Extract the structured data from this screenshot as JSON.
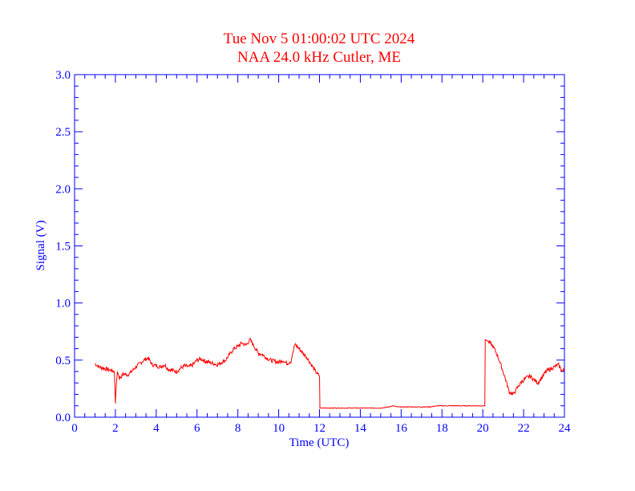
{
  "chart_data": {
    "type": "line",
    "title": "Tue Nov 5 01:00:02 UTC 2024",
    "subtitle": "NAA 24.0 kHz Cutler, ME",
    "xlabel": "Time (UTC)",
    "ylabel": "Signal (V)",
    "xlim": [
      0,
      24
    ],
    "ylim": [
      0,
      3.0
    ],
    "xticks": [
      0,
      2,
      4,
      6,
      8,
      10,
      12,
      14,
      16,
      18,
      20,
      22,
      24
    ],
    "xtick_labels": [
      "0",
      "2",
      "4",
      "6",
      "8",
      "10",
      "12",
      "14",
      "16",
      "18",
      "20",
      "22",
      "24"
    ],
    "yticks": [
      0,
      0.5,
      1.0,
      1.5,
      2.0,
      2.5,
      3.0
    ],
    "ytick_labels": [
      "0.0",
      "0.5",
      "1.0",
      "1.5",
      "2.0",
      "2.5",
      "3.0"
    ],
    "grid": false,
    "colors": {
      "title": "#ff0000",
      "axes": "#0000ff",
      "series": "#ff0000"
    },
    "series": [
      {
        "x": [
          1.0,
          1.2,
          1.4,
          1.6,
          1.8,
          1.95,
          2.0,
          2.05,
          2.1,
          2.2,
          2.4,
          2.6,
          2.8,
          3.0,
          3.2,
          3.4,
          3.6,
          3.8,
          4.0,
          4.2,
          4.4,
          4.6,
          4.8,
          5.0,
          5.2,
          5.4,
          5.6,
          5.8,
          6.0,
          6.2,
          6.4,
          6.6,
          6.8,
          7.0,
          7.2,
          7.4,
          7.6,
          7.8,
          8.0,
          8.2,
          8.4,
          8.6,
          8.8,
          9.0,
          9.2,
          9.4,
          9.6,
          9.8,
          10.0,
          10.2,
          10.4,
          10.6,
          10.8,
          11.0,
          11.2,
          11.4,
          11.6,
          11.8,
          12.0,
          12.02,
          12.2,
          12.6,
          13.0,
          13.4,
          13.8,
          14.2,
          14.6,
          15.0,
          15.4,
          15.6,
          15.8,
          16.2,
          16.6,
          17.0,
          17.4,
          17.8,
          18.2,
          18.6,
          19.0,
          19.4,
          19.8,
          20.1,
          20.12,
          20.3,
          20.5,
          20.7,
          20.9,
          21.1,
          21.3,
          21.5,
          21.7,
          21.9,
          22.1,
          22.3,
          22.5,
          22.7,
          22.9,
          23.1,
          23.3,
          23.5,
          23.7,
          23.9,
          24.0
        ],
        "y": [
          0.47,
          0.44,
          0.43,
          0.42,
          0.41,
          0.4,
          0.12,
          0.3,
          0.4,
          0.34,
          0.38,
          0.37,
          0.4,
          0.44,
          0.47,
          0.5,
          0.52,
          0.46,
          0.45,
          0.44,
          0.46,
          0.42,
          0.41,
          0.4,
          0.43,
          0.45,
          0.44,
          0.46,
          0.5,
          0.51,
          0.49,
          0.48,
          0.47,
          0.46,
          0.48,
          0.5,
          0.55,
          0.6,
          0.62,
          0.65,
          0.63,
          0.68,
          0.62,
          0.56,
          0.55,
          0.52,
          0.5,
          0.49,
          0.48,
          0.5,
          0.47,
          0.49,
          0.64,
          0.6,
          0.56,
          0.52,
          0.46,
          0.4,
          0.36,
          0.08,
          0.08,
          0.08,
          0.08,
          0.08,
          0.08,
          0.08,
          0.08,
          0.08,
          0.09,
          0.1,
          0.09,
          0.09,
          0.09,
          0.09,
          0.09,
          0.1,
          0.1,
          0.1,
          0.1,
          0.1,
          0.1,
          0.1,
          0.68,
          0.66,
          0.62,
          0.55,
          0.45,
          0.34,
          0.22,
          0.2,
          0.26,
          0.31,
          0.34,
          0.36,
          0.33,
          0.3,
          0.35,
          0.4,
          0.42,
          0.44,
          0.46,
          0.4,
          0.42
        ]
      }
    ]
  }
}
